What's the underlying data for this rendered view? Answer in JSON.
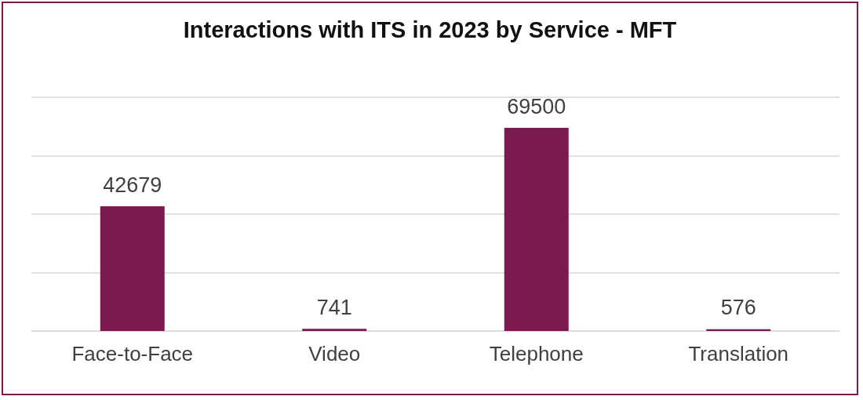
{
  "chart_data": {
    "type": "bar",
    "title": "Interactions with ITS in 2023 by Service - MFT",
    "categories": [
      "Face-to-Face",
      "Video",
      "Telephone",
      "Translation"
    ],
    "values": [
      42679,
      741,
      69500,
      576
    ],
    "color": "#7b1a4f",
    "ylim": [
      0,
      80000
    ],
    "yticks": [
      0,
      20000,
      40000,
      60000,
      80000
    ],
    "grid": "y",
    "tick_labels": "x",
    "data_labels": true
  }
}
